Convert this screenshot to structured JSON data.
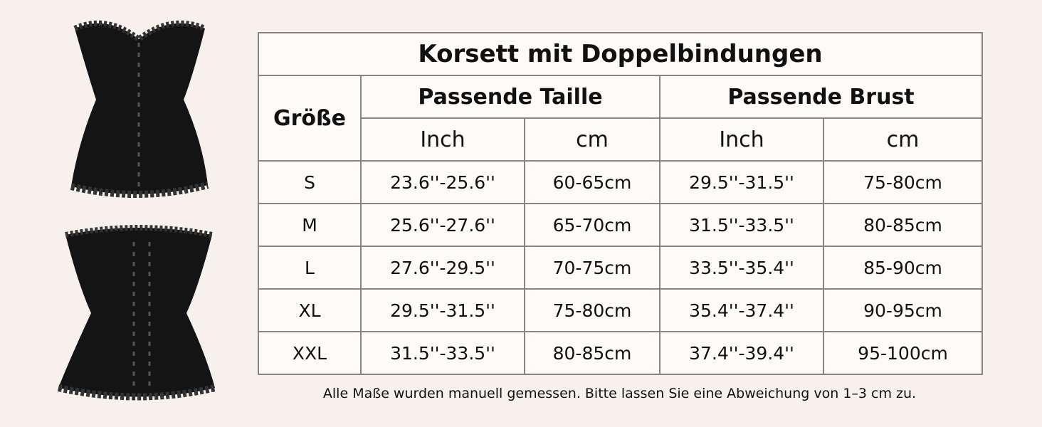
{
  "table": {
    "title": "Korsett mit Doppelbindungen",
    "size_header": "Größe",
    "groups": [
      "Passende Taille",
      "Passende Brust"
    ],
    "units": [
      "Inch",
      "cm",
      "Inch",
      "cm"
    ],
    "rows": [
      [
        "S",
        "23.6''-25.6''",
        "60-65cm",
        "29.5''-31.5''",
        "75-80cm"
      ],
      [
        "M",
        "25.6''-27.6''",
        "65-70cm",
        "31.5''-33.5''",
        "80-85cm"
      ],
      [
        "L",
        "27.6''-29.5''",
        "70-75cm",
        "33.5''-35.4''",
        "85-90cm"
      ],
      [
        "XL",
        "29.5''-31.5''",
        "75-80cm",
        "35.4''-37.4''",
        "90-95cm"
      ],
      [
        "XXL",
        "31.5''-33.5''",
        "80-85cm",
        "37.4''-39.4''",
        "95-100cm"
      ]
    ],
    "note": "Alle Maße wurden manuell gemessen. Bitte lassen Sie eine Abweichung von 1–3 cm zu."
  }
}
